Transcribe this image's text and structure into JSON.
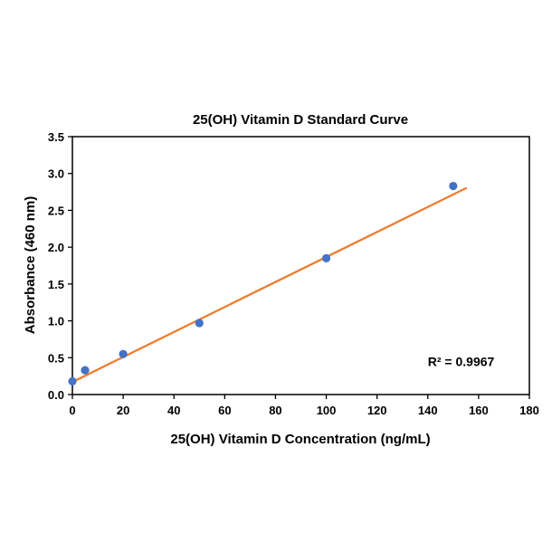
{
  "chart_data": {
    "type": "scatter",
    "title": "25(OH) Vitamin D Standard Curve",
    "xlabel": "25(OH) Vitamin D Concentration (ng/mL)",
    "ylabel": "Absorbance (460 nm)",
    "x": [
      0,
      5,
      20,
      50,
      100,
      150
    ],
    "y": [
      0.18,
      0.33,
      0.55,
      0.97,
      1.85,
      2.83
    ],
    "xlim": [
      0,
      180
    ],
    "xtick_step": 20,
    "ylim": [
      0,
      3.5
    ],
    "ytick_step": 0.5,
    "grid": false,
    "legend": "none",
    "point_color": "#4472C4",
    "line_color": "#ED7D31",
    "border_color": "#000000",
    "trendline": {
      "x1": 0,
      "y1": 0.17,
      "x2": 155,
      "y2": 2.8
    },
    "annotation": {
      "text": "R² = 0.9967",
      "x": 140,
      "y": 0.45
    }
  }
}
